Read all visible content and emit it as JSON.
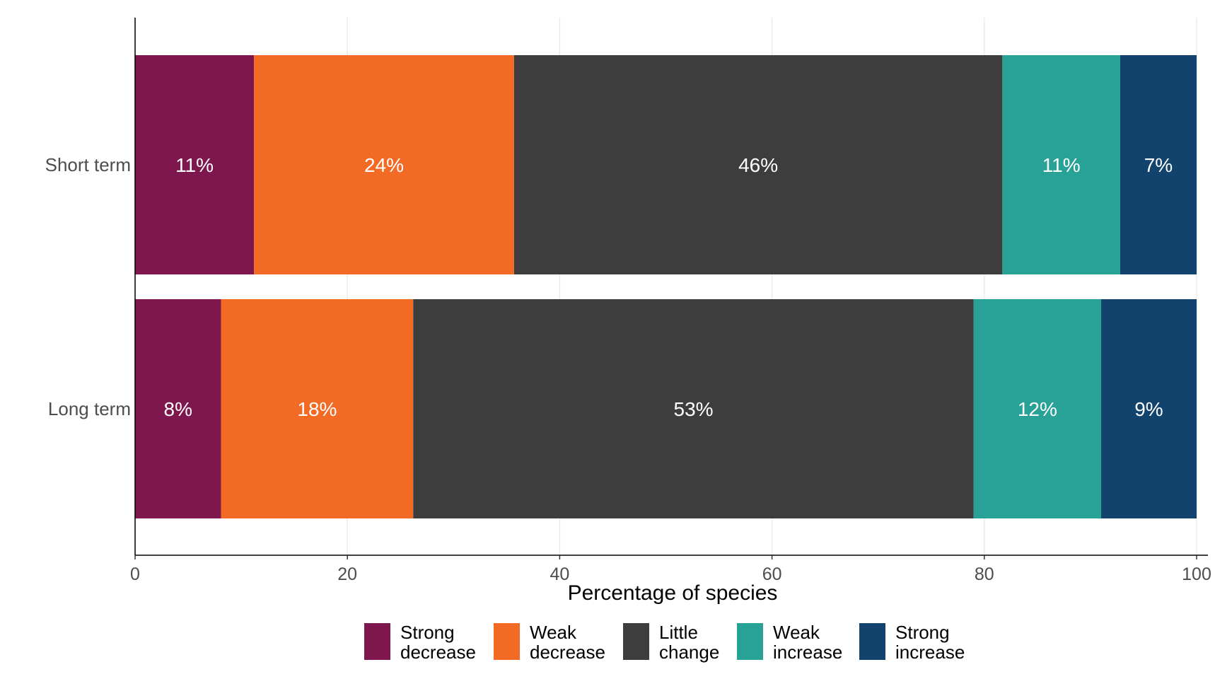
{
  "chart_data": {
    "type": "bar",
    "orientation": "horizontal",
    "stacked": true,
    "categories": [
      "Short term",
      "Long term"
    ],
    "series": [
      {
        "name": "Strong decrease",
        "legend_lines": [
          "Strong",
          "decrease"
        ],
        "values": [
          11.2,
          8.1
        ],
        "labels": [
          "11%",
          "8%"
        ],
        "color": "#7d174d"
      },
      {
        "name": "Weak decrease",
        "legend_lines": [
          "Weak",
          "decrease"
        ],
        "values": [
          24.5,
          18.1
        ],
        "labels": [
          "24%",
          "18%"
        ],
        "color": "#f36a25"
      },
      {
        "name": "Little change",
        "legend_lines": [
          "Little",
          "change"
        ],
        "values": [
          46.0,
          52.8
        ],
        "labels": [
          "46%",
          "53%"
        ],
        "color": "#3d3d3d"
      },
      {
        "name": "Weak increase",
        "legend_lines": [
          "Weak",
          "increase"
        ],
        "values": [
          11.1,
          12.0
        ],
        "labels": [
          "11%",
          "12%"
        ],
        "color": "#28a197"
      },
      {
        "name": "Strong increase",
        "legend_lines": [
          "Strong",
          "increase"
        ],
        "values": [
          7.2,
          9.0
        ],
        "labels": [
          "7%",
          "9%"
        ],
        "color": "#12436d"
      }
    ],
    "x_ticks": [
      0,
      20,
      40,
      60,
      80,
      100
    ],
    "xlim": [
      0,
      100
    ],
    "xlabel": "Percentage of species",
    "ylabel": "",
    "title": "",
    "grid": "vertical major",
    "legend_position": "bottom"
  }
}
